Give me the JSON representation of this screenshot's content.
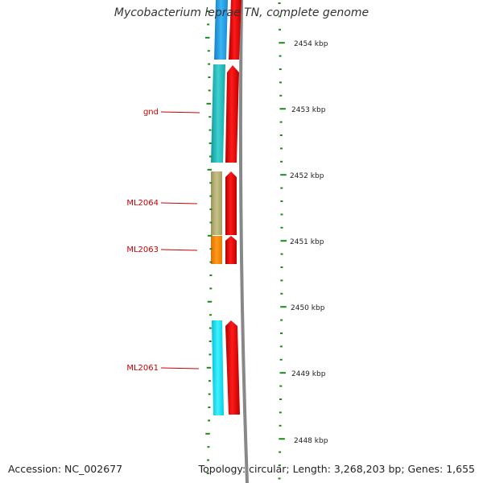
{
  "title": "Mycobacterium leprae TN, complete genome",
  "footer": {
    "accession": "Accession: NC_002677",
    "summary": "Topology: circular; Length: 3,268,203 bp; Genes: 1,655"
  },
  "ruler": {
    "ticks": [
      "2454 kbp",
      "2453 kbp",
      "2452 kbp",
      "2451 kbp",
      "2450 kbp",
      "2449 kbp",
      "2448 kbp"
    ]
  },
  "gene_labels": [
    "gnd",
    "ML2064",
    "ML2063",
    "ML2061"
  ],
  "colors": {
    "tick": "#1a8a1a",
    "label": "#cc0000",
    "backbone": "#888888",
    "cds": "#ee0000",
    "feature_blue": "#1ea0e8",
    "feature_teal": "#20c0c0",
    "feature_olive": "#b5b070",
    "feature_orange": "#ff8800",
    "feature_cyan": "#00e0f0"
  }
}
